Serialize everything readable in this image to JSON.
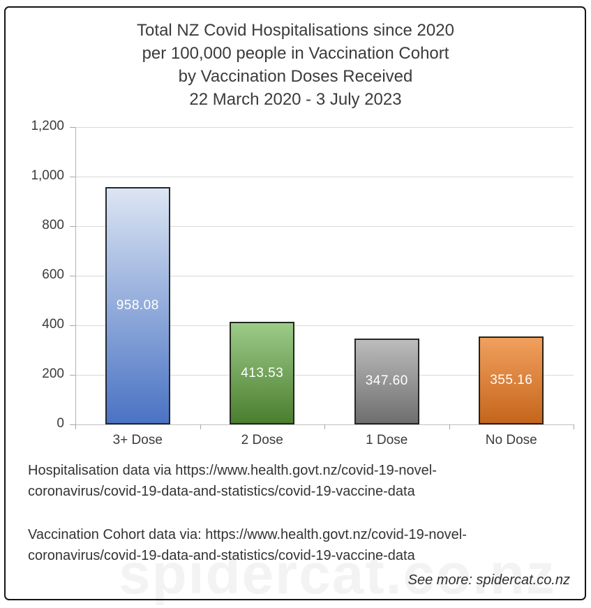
{
  "chart_data": {
    "type": "bar",
    "title_lines": [
      "Total NZ Covid Hospitalisations since 2020",
      "per 100,000 people in Vaccination Cohort",
      "by Vaccination Doses Received",
      "22 March 2020 - 3 July 2023"
    ],
    "categories": [
      "3+ Dose",
      "2 Dose",
      "1 Dose",
      "No Dose"
    ],
    "values": [
      958.08,
      413.53,
      347.6,
      355.16
    ],
    "value_labels": [
      "958.08",
      "413.53",
      "347.60",
      "355.16"
    ],
    "xlabel": "",
    "ylabel": "",
    "ylim": [
      0,
      1200
    ],
    "ytick_interval": 200,
    "ytick_labels": [
      "0",
      "200",
      "400",
      "600",
      "800",
      "1,000",
      "1,200"
    ],
    "grid": true,
    "legend": "none",
    "bar_styles": [
      {
        "name": "blue",
        "top_color": "#dce5f3",
        "bottom_color": "#4a73c4",
        "border_color": "#25282e"
      },
      {
        "name": "green",
        "top_color": "#9ccb89",
        "bottom_color": "#4b7e2f",
        "border_color": "#23271e"
      },
      {
        "name": "gray",
        "top_color": "#bcbcbc",
        "bottom_color": "#6e6e6e",
        "border_color": "#262626"
      },
      {
        "name": "orange",
        "top_color": "#f1a05e",
        "bottom_color": "#c5651c",
        "border_color": "#2b2014"
      }
    ],
    "colors": {
      "gridline": "#d9d9d9",
      "axis": "#b3b3b3",
      "text": "#3b3b3b",
      "value_label": "#ffffff"
    }
  },
  "footer": {
    "source1_lines": [
      "Hospitalisation data via https://www.health.govt.nz/covid-19-novel-",
      "coronavirus/covid-19-data-and-statistics/covid-19-vaccine-data"
    ],
    "source2_lines": [
      "Vaccination Cohort data via: https://www.health.govt.nz/covid-19-novel-",
      "coronavirus/covid-19-data-and-statistics/covid-19-vaccine-data"
    ],
    "see_more": "See more: spidercat.co.nz",
    "watermark": "spidercat.co.nz",
    "watermark_color": "#f3f3f3"
  }
}
